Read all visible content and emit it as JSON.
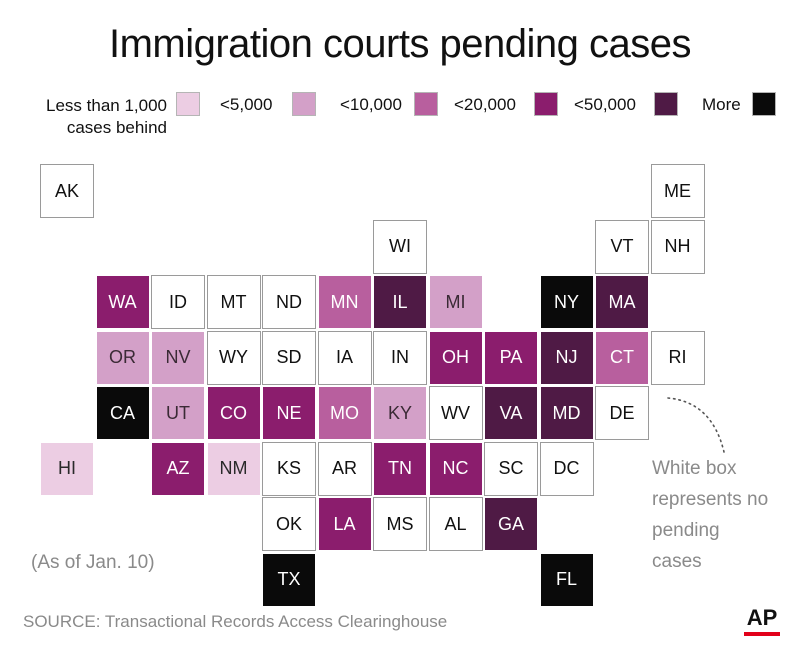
{
  "chart_data": {
    "type": "table",
    "title": "Immigration courts pending cases",
    "legend": [
      {
        "key": "lt1000",
        "label": "Less than 1,000 cases behind",
        "color": "#eccde3"
      },
      {
        "key": "lt5000",
        "label": "<5,000",
        "color": "#d3a0c8"
      },
      {
        "key": "lt10000",
        "label": "<10,000",
        "color": "#b85f9e"
      },
      {
        "key": "lt20000",
        "label": "<20,000",
        "color": "#8b1d6d"
      },
      {
        "key": "lt50000",
        "label": "<50,000",
        "color": "#4f1a45"
      },
      {
        "key": "more",
        "label": "More",
        "color": "#0a0a0a"
      },
      {
        "key": "none",
        "label": "",
        "color": "#ffffff"
      }
    ],
    "states": [
      {
        "abbr": "AK",
        "row": 0,
        "col": 0,
        "category": "none"
      },
      {
        "abbr": "ME",
        "row": 0,
        "col": 11,
        "category": "none"
      },
      {
        "abbr": "WI",
        "row": 1,
        "col": 6,
        "category": "none"
      },
      {
        "abbr": "VT",
        "row": 1,
        "col": 10,
        "category": "none"
      },
      {
        "abbr": "NH",
        "row": 1,
        "col": 11,
        "category": "none"
      },
      {
        "abbr": "WA",
        "row": 2,
        "col": 1,
        "category": "lt20000"
      },
      {
        "abbr": "ID",
        "row": 2,
        "col": 2,
        "category": "none"
      },
      {
        "abbr": "MT",
        "row": 2,
        "col": 3,
        "category": "none"
      },
      {
        "abbr": "ND",
        "row": 2,
        "col": 4,
        "category": "none"
      },
      {
        "abbr": "MN",
        "row": 2,
        "col": 5,
        "category": "lt10000"
      },
      {
        "abbr": "IL",
        "row": 2,
        "col": 6,
        "category": "lt50000"
      },
      {
        "abbr": "MI",
        "row": 2,
        "col": 7,
        "category": "lt5000"
      },
      {
        "abbr": "NY",
        "row": 2,
        "col": 9,
        "category": "more"
      },
      {
        "abbr": "MA",
        "row": 2,
        "col": 10,
        "category": "lt50000"
      },
      {
        "abbr": "OR",
        "row": 3,
        "col": 1,
        "category": "lt5000"
      },
      {
        "abbr": "NV",
        "row": 3,
        "col": 2,
        "category": "lt5000"
      },
      {
        "abbr": "WY",
        "row": 3,
        "col": 3,
        "category": "none"
      },
      {
        "abbr": "SD",
        "row": 3,
        "col": 4,
        "category": "none"
      },
      {
        "abbr": "IA",
        "row": 3,
        "col": 5,
        "category": "none"
      },
      {
        "abbr": "IN",
        "row": 3,
        "col": 6,
        "category": "none"
      },
      {
        "abbr": "OH",
        "row": 3,
        "col": 7,
        "category": "lt20000"
      },
      {
        "abbr": "PA",
        "row": 3,
        "col": 8,
        "category": "lt20000"
      },
      {
        "abbr": "NJ",
        "row": 3,
        "col": 9,
        "category": "lt50000"
      },
      {
        "abbr": "CT",
        "row": 3,
        "col": 10,
        "category": "lt10000"
      },
      {
        "abbr": "RI",
        "row": 3,
        "col": 11,
        "category": "none"
      },
      {
        "abbr": "CA",
        "row": 4,
        "col": 1,
        "category": "more"
      },
      {
        "abbr": "UT",
        "row": 4,
        "col": 2,
        "category": "lt5000"
      },
      {
        "abbr": "CO",
        "row": 4,
        "col": 3,
        "category": "lt20000"
      },
      {
        "abbr": "NE",
        "row": 4,
        "col": 4,
        "category": "lt20000"
      },
      {
        "abbr": "MO",
        "row": 4,
        "col": 5,
        "category": "lt10000"
      },
      {
        "abbr": "KY",
        "row": 4,
        "col": 6,
        "category": "lt5000"
      },
      {
        "abbr": "WV",
        "row": 4,
        "col": 7,
        "category": "none"
      },
      {
        "abbr": "VA",
        "row": 4,
        "col": 8,
        "category": "lt50000"
      },
      {
        "abbr": "MD",
        "row": 4,
        "col": 9,
        "category": "lt50000"
      },
      {
        "abbr": "DE",
        "row": 4,
        "col": 10,
        "category": "none"
      },
      {
        "abbr": "HI",
        "row": 5,
        "col": 0,
        "category": "lt1000"
      },
      {
        "abbr": "AZ",
        "row": 5,
        "col": 2,
        "category": "lt20000"
      },
      {
        "abbr": "NM",
        "row": 5,
        "col": 3,
        "category": "lt1000"
      },
      {
        "abbr": "KS",
        "row": 5,
        "col": 4,
        "category": "none"
      },
      {
        "abbr": "AR",
        "row": 5,
        "col": 5,
        "category": "none"
      },
      {
        "abbr": "TN",
        "row": 5,
        "col": 6,
        "category": "lt20000"
      },
      {
        "abbr": "NC",
        "row": 5,
        "col": 7,
        "category": "lt20000"
      },
      {
        "abbr": "SC",
        "row": 5,
        "col": 8,
        "category": "none"
      },
      {
        "abbr": "DC",
        "row": 5,
        "col": 9,
        "category": "none"
      },
      {
        "abbr": "OK",
        "row": 6,
        "col": 4,
        "category": "none"
      },
      {
        "abbr": "LA",
        "row": 6,
        "col": 5,
        "category": "lt20000"
      },
      {
        "abbr": "MS",
        "row": 6,
        "col": 6,
        "category": "none"
      },
      {
        "abbr": "AL",
        "row": 6,
        "col": 7,
        "category": "none"
      },
      {
        "abbr": "GA",
        "row": 6,
        "col": 8,
        "category": "lt50000"
      },
      {
        "abbr": "TX",
        "row": 7,
        "col": 4,
        "category": "more"
      },
      {
        "abbr": "FL",
        "row": 7,
        "col": 9,
        "category": "more"
      }
    ],
    "annotation": "White box represents no pending cases",
    "as_of": "(As of Jan. 10)",
    "source": "SOURCE: Transactional Records Access Clearinghouse"
  },
  "logo": "AP"
}
